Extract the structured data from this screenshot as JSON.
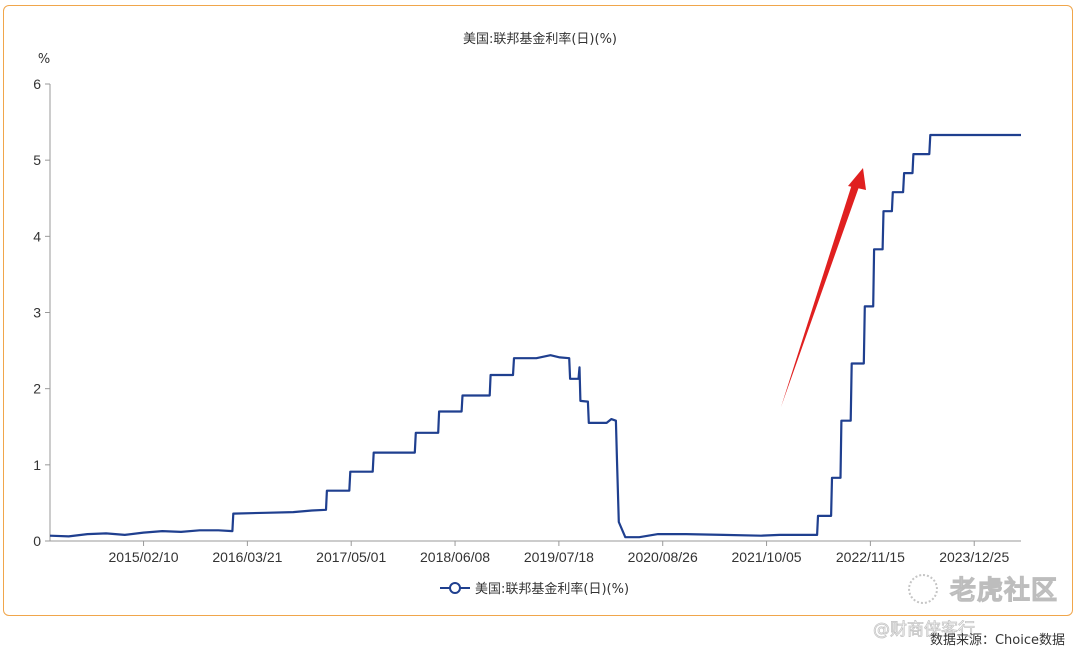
{
  "chart_data": {
    "type": "line",
    "title": "美国:联邦基金利率(日)(%)",
    "yunit": "%",
    "ylim": [
      0,
      6
    ],
    "yticks": [
      "0",
      "1",
      "2",
      "3",
      "4",
      "5",
      "6"
    ],
    "xticks": [
      "2015/02/10",
      "2016/03/21",
      "2017/05/01",
      "2018/06/08",
      "2019/07/18",
      "2020/08/26",
      "2021/10/05",
      "2022/11/15",
      "2023/12/25"
    ],
    "xtick_positions": [
      1.0,
      2.11,
      3.22,
      4.33,
      5.44,
      6.55,
      7.66,
      8.77,
      9.88
    ],
    "x_range": [
      0.0,
      10.38
    ],
    "series": [
      {
        "name": "美国:联邦基金利率(日)(%)",
        "color": "#1f3f8f",
        "points": [
          [
            0.0,
            0.07
          ],
          [
            0.2,
            0.06
          ],
          [
            0.4,
            0.09
          ],
          [
            0.6,
            0.1
          ],
          [
            0.8,
            0.08
          ],
          [
            1.0,
            0.11
          ],
          [
            1.2,
            0.13
          ],
          [
            1.4,
            0.12
          ],
          [
            1.6,
            0.14
          ],
          [
            1.8,
            0.14
          ],
          [
            1.95,
            0.13
          ],
          [
            1.96,
            0.36
          ],
          [
            2.3,
            0.37
          ],
          [
            2.6,
            0.38
          ],
          [
            2.8,
            0.4
          ],
          [
            2.95,
            0.41
          ],
          [
            2.96,
            0.66
          ],
          [
            3.2,
            0.66
          ],
          [
            3.21,
            0.91
          ],
          [
            3.45,
            0.91
          ],
          [
            3.46,
            1.16
          ],
          [
            3.9,
            1.16
          ],
          [
            3.91,
            1.42
          ],
          [
            4.15,
            1.42
          ],
          [
            4.16,
            1.7
          ],
          [
            4.4,
            1.7
          ],
          [
            4.41,
            1.91
          ],
          [
            4.7,
            1.91
          ],
          [
            4.71,
            2.18
          ],
          [
            4.95,
            2.18
          ],
          [
            4.96,
            2.4
          ],
          [
            5.2,
            2.4
          ],
          [
            5.35,
            2.44
          ],
          [
            5.45,
            2.41
          ],
          [
            5.55,
            2.4
          ],
          [
            5.56,
            2.13
          ],
          [
            5.65,
            2.13
          ],
          [
            5.66,
            2.28
          ],
          [
            5.67,
            1.84
          ],
          [
            5.75,
            1.83
          ],
          [
            5.76,
            1.55
          ],
          [
            5.95,
            1.55
          ],
          [
            6.0,
            1.6
          ],
          [
            6.05,
            1.58
          ],
          [
            6.06,
            1.1
          ],
          [
            6.08,
            0.25
          ],
          [
            6.15,
            0.05
          ],
          [
            6.3,
            0.05
          ],
          [
            6.5,
            0.09
          ],
          [
            6.8,
            0.09
          ],
          [
            7.2,
            0.08
          ],
          [
            7.6,
            0.07
          ],
          [
            7.8,
            0.08
          ],
          [
            8.2,
            0.08
          ],
          [
            8.21,
            0.33
          ],
          [
            8.35,
            0.33
          ],
          [
            8.36,
            0.83
          ],
          [
            8.45,
            0.83
          ],
          [
            8.46,
            1.58
          ],
          [
            8.56,
            1.58
          ],
          [
            8.57,
            2.33
          ],
          [
            8.7,
            2.33
          ],
          [
            8.71,
            3.08
          ],
          [
            8.8,
            3.08
          ],
          [
            8.81,
            3.83
          ],
          [
            8.9,
            3.83
          ],
          [
            8.91,
            4.33
          ],
          [
            9.0,
            4.33
          ],
          [
            9.01,
            4.58
          ],
          [
            9.12,
            4.58
          ],
          [
            9.13,
            4.83
          ],
          [
            9.22,
            4.83
          ],
          [
            9.23,
            5.08
          ],
          [
            9.4,
            5.08
          ],
          [
            9.41,
            5.33
          ],
          [
            10.38,
            5.33
          ]
        ]
      }
    ],
    "annotation": {
      "type": "arrow",
      "color": "#e02020"
    },
    "legend": {
      "label": "美国:联邦基金利率(日)(%)",
      "placement": "bottom-center"
    }
  },
  "watermark": {
    "brand": "老虎社区",
    "author": "@财商侠客行"
  },
  "source": "数据来源：Choice数据"
}
